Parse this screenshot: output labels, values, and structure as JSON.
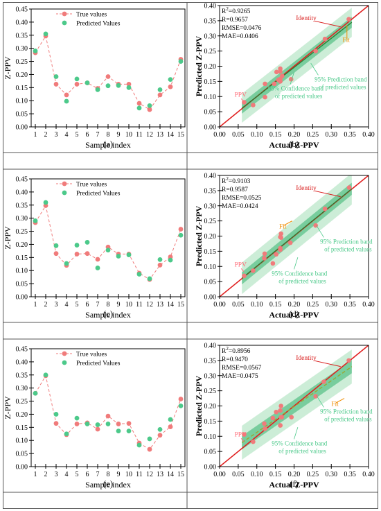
{
  "colors": {
    "true_marker": "#f07b7b",
    "true_line": "#f07b7b",
    "pred_marker": "#4cc98a",
    "identity_line": "#e02020",
    "fit_line": "#2e7d32",
    "fit_line_dashed": "#9aa832",
    "confidence_band": "#5cc28a",
    "prediction_band": "#c7ebd3",
    "identity_label": "#d81818",
    "fit_label": "#f08c00",
    "ppv_label": "#ff6e7a",
    "band_label": "#4cc98a",
    "frame": "#555555"
  },
  "chart_data": [
    {
      "panel_label": "(a)",
      "type": "line",
      "x": [
        1,
        2,
        3,
        4,
        5,
        6,
        7,
        8,
        9,
        10,
        11,
        12,
        13,
        14,
        15
      ],
      "series": [
        {
          "name": "True values",
          "values": [
            0.283,
            0.347,
            0.163,
            0.122,
            0.163,
            0.168,
            0.147,
            0.192,
            0.163,
            0.163,
            0.09,
            0.066,
            0.122,
            0.153,
            0.258
          ]
        },
        {
          "name": "Predicted Values",
          "values": [
            0.29,
            0.355,
            0.192,
            0.098,
            0.183,
            0.168,
            0.142,
            0.157,
            0.158,
            0.15,
            0.072,
            0.081,
            0.142,
            0.181,
            0.25
          ]
        }
      ],
      "xlabel": "Sample index",
      "ylabel": "Z-PPV",
      "xticks": [
        "1",
        "2",
        "3",
        "4",
        "5",
        "6",
        "7",
        "8",
        "9",
        "10",
        "11",
        "12",
        "13",
        "14",
        "15"
      ],
      "yticks": [
        "0.00",
        "0.05",
        "0.10",
        "0.15",
        "0.20",
        "0.25",
        "0.30",
        "0.35",
        "0.40",
        "0.45"
      ],
      "ylim": [
        0,
        0.45
      ],
      "xlim": [
        0.6,
        15.4
      ],
      "legend": "top-center"
    },
    {
      "panel_label": "(b)",
      "type": "scatter",
      "points": [
        [
          0.066,
          0.081
        ],
        [
          0.09,
          0.072
        ],
        [
          0.122,
          0.098
        ],
        [
          0.122,
          0.142
        ],
        [
          0.147,
          0.142
        ],
        [
          0.153,
          0.181
        ],
        [
          0.158,
          0.155
        ],
        [
          0.163,
          0.192
        ],
        [
          0.163,
          0.183
        ],
        [
          0.163,
          0.158
        ],
        [
          0.163,
          0.15
        ],
        [
          0.168,
          0.168
        ],
        [
          0.192,
          0.157
        ],
        [
          0.258,
          0.25
        ],
        [
          0.283,
          0.29
        ],
        [
          0.347,
          0.355
        ]
      ],
      "fit": {
        "slope": 0.96,
        "intercept": 0.004
      },
      "confidence_halfwidth": 0.018,
      "prediction_halfwidth": 0.048,
      "stats": [
        {
          "lead": "R",
          "sup": "2",
          "rest": "=0.9265"
        },
        {
          "lead": "R=0.9657",
          "sup": "",
          "rest": ""
        },
        {
          "lead": "RMSE=0.0476",
          "sup": "",
          "rest": ""
        },
        {
          "lead": "MAE=0.0406",
          "sup": "",
          "rest": ""
        }
      ],
      "annotations": {
        "identity": "Identity",
        "fit": "Fit",
        "ppv": "PPV",
        "prediction_band": [
          "95% Prediction band",
          "of predicted values"
        ],
        "confidence_band": [
          "95% Confidence band",
          "of predicted values"
        ]
      },
      "xlabel": "Actual Z-PPV",
      "ylabel": "Predicted Z-PPV",
      "ticks": [
        "0.00",
        "0.05",
        "0.10",
        "0.15",
        "0.20",
        "0.25",
        "0.30",
        "0.35",
        "0.40"
      ],
      "xlim": [
        0,
        0.4
      ],
      "ylim": [
        0,
        0.4
      ]
    },
    {
      "panel_label": "(c)",
      "type": "line",
      "x": [
        1,
        2,
        3,
        4,
        5,
        6,
        7,
        8,
        9,
        10,
        11,
        12,
        13,
        14,
        15
      ],
      "series": [
        {
          "name": "True values",
          "values": [
            0.283,
            0.348,
            0.165,
            0.12,
            0.163,
            0.165,
            0.143,
            0.19,
            0.163,
            0.163,
            0.09,
            0.066,
            0.121,
            0.152,
            0.258
          ]
        },
        {
          "name": "Predicted Values",
          "values": [
            0.29,
            0.36,
            0.195,
            0.127,
            0.197,
            0.208,
            0.11,
            0.178,
            0.155,
            0.16,
            0.086,
            0.069,
            0.142,
            0.14,
            0.235
          ]
        }
      ],
      "xlabel": "Sample index",
      "ylabel": "Z-PPV",
      "xticks": [
        "1",
        "2",
        "3",
        "4",
        "5",
        "6",
        "7",
        "8",
        "9",
        "10",
        "11",
        "12",
        "13",
        "14",
        "15"
      ],
      "yticks": [
        "0.00",
        "0.05",
        "0.10",
        "0.15",
        "0.20",
        "0.25",
        "0.30",
        "0.35",
        "0.40",
        "0.45"
      ],
      "ylim": [
        0,
        0.45
      ],
      "xlim": [
        0.6,
        15.4
      ],
      "legend": "top-center"
    },
    {
      "panel_label": "(d)",
      "type": "scatter",
      "points": [
        [
          0.066,
          0.069
        ],
        [
          0.09,
          0.086
        ],
        [
          0.12,
          0.127
        ],
        [
          0.121,
          0.142
        ],
        [
          0.143,
          0.11
        ],
        [
          0.152,
          0.14
        ],
        [
          0.163,
          0.155
        ],
        [
          0.163,
          0.16
        ],
        [
          0.163,
          0.197
        ],
        [
          0.165,
          0.208
        ],
        [
          0.165,
          0.195
        ],
        [
          0.19,
          0.178
        ],
        [
          0.258,
          0.235
        ],
        [
          0.283,
          0.29
        ],
        [
          0.348,
          0.36
        ]
      ],
      "fit": {
        "slope": 1.0,
        "intercept": 0.001
      },
      "confidence_halfwidth": 0.02,
      "prediction_halfwidth": 0.052,
      "stats": [
        {
          "lead": "R",
          "sup": "2",
          "rest": "=0.9103"
        },
        {
          "lead": "R=0.9587",
          "sup": "",
          "rest": ""
        },
        {
          "lead": "RMSE=0.0525",
          "sup": "",
          "rest": ""
        },
        {
          "lead": "MAE=0.0424",
          "sup": "",
          "rest": ""
        }
      ],
      "annotations": {
        "identity": "Identity",
        "fit": "Fit",
        "ppv": "PPV",
        "prediction_band": [
          "95% Prediction band",
          "of predicted values"
        ],
        "confidence_band": [
          "95% Confidence band",
          "of predicted values"
        ]
      },
      "xlabel": "Actual Z-PPV",
      "ylabel": "Predicted Z-PPV",
      "ticks": [
        "0.00",
        "0.05",
        "0.10",
        "0.15",
        "0.20",
        "0.25",
        "0.30",
        "0.35",
        "0.40"
      ],
      "xlim": [
        0,
        0.4
      ],
      "ylim": [
        0,
        0.4
      ]
    },
    {
      "panel_label": "(e)",
      "type": "line",
      "x": [
        1,
        2,
        3,
        4,
        5,
        6,
        7,
        8,
        9,
        10,
        11,
        12,
        13,
        14,
        15
      ],
      "series": [
        {
          "name": "True values",
          "values": [
            0.28,
            0.347,
            0.165,
            0.122,
            0.163,
            0.167,
            0.143,
            0.193,
            0.163,
            0.165,
            0.09,
            0.066,
            0.12,
            0.152,
            0.258
          ]
        },
        {
          "name": "Predicted Values",
          "values": [
            0.28,
            0.35,
            0.2,
            0.125,
            0.185,
            0.163,
            0.16,
            0.163,
            0.136,
            0.136,
            0.082,
            0.106,
            0.142,
            0.18,
            0.232
          ]
        }
      ],
      "xlabel": "Sample index",
      "ylabel": "Z-PPV",
      "xticks": [
        "1",
        "2",
        "3",
        "4",
        "5",
        "6",
        "7",
        "8",
        "9",
        "10",
        "11",
        "12",
        "13",
        "14",
        "15"
      ],
      "yticks": [
        "0.00",
        "0.05",
        "0.10",
        "0.15",
        "0.20",
        "0.25",
        "0.30",
        "0.35",
        "0.40",
        "0.45"
      ],
      "ylim": [
        0,
        0.45
      ],
      "xlim": [
        0.6,
        15.4
      ],
      "legend": "top-center"
    },
    {
      "panel_label": "(f)",
      "type": "scatter",
      "points": [
        [
          0.066,
          0.106
        ],
        [
          0.09,
          0.082
        ],
        [
          0.12,
          0.142
        ],
        [
          0.122,
          0.125
        ],
        [
          0.143,
          0.16
        ],
        [
          0.152,
          0.18
        ],
        [
          0.163,
          0.185
        ],
        [
          0.163,
          0.136
        ],
        [
          0.163,
          0.136
        ],
        [
          0.165,
          0.2
        ],
        [
          0.165,
          0.163
        ],
        [
          0.167,
          0.163
        ],
        [
          0.193,
          0.163
        ],
        [
          0.258,
          0.232
        ],
        [
          0.28,
          0.28
        ],
        [
          0.347,
          0.35
        ]
      ],
      "fit": {
        "slope": 0.85,
        "intercept": 0.028
      },
      "dashed_fit": true,
      "confidence_halfwidth": 0.022,
      "prediction_halfwidth": 0.056,
      "stats": [
        {
          "lead": "R",
          "sup": "2",
          "rest": "=0.8956"
        },
        {
          "lead": "R=0.9470",
          "sup": "",
          "rest": ""
        },
        {
          "lead": "RMSE=0.0567",
          "sup": "",
          "rest": ""
        },
        {
          "lead": "MAE=0.0475",
          "sup": "",
          "rest": ""
        }
      ],
      "annotations": {
        "identity": "Identity",
        "fit": "Fit",
        "ppv": "PPV",
        "prediction_band": [
          "95% Prediction band",
          "of predicted values"
        ],
        "confidence_band": [
          "95% Confidence band",
          "of predicted values"
        ]
      },
      "xlabel": "Actual Z-PPV",
      "ylabel": "Predicted Z-PPV",
      "ticks": [
        "0.00",
        "0.05",
        "0.10",
        "0.15",
        "0.20",
        "0.25",
        "0.30",
        "0.35",
        "0.40"
      ],
      "xlim": [
        0,
        0.4
      ],
      "ylim": [
        0,
        0.4
      ]
    }
  ]
}
